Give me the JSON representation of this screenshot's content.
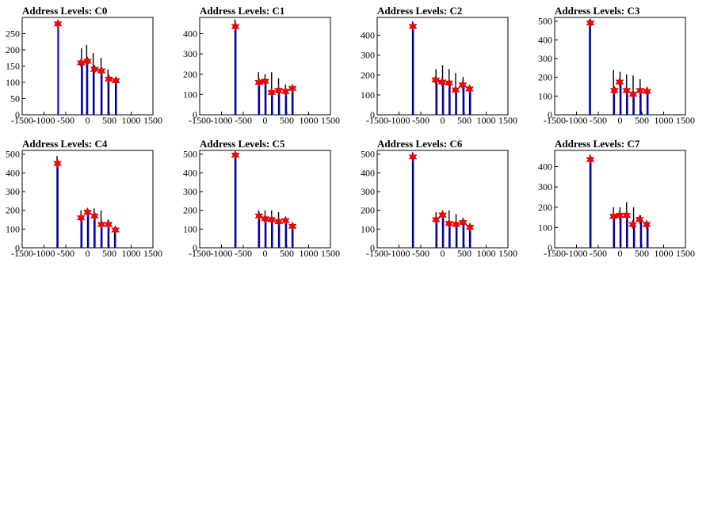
{
  "chart_data": [
    {
      "type": "bar",
      "title": "Address Levels: C0",
      "xlim": [
        -1500,
        1500
      ],
      "ylim": [
        0,
        300
      ],
      "xticks": [
        -1500,
        -1000,
        -500,
        0,
        500,
        1000,
        1500
      ],
      "yticks": [
        0,
        50,
        100,
        150,
        200,
        250
      ],
      "black_bars": [
        [
          -680,
          290
        ],
        [
          -140,
          205
        ],
        [
          -20,
          215
        ],
        [
          130,
          190
        ],
        [
          310,
          175
        ],
        [
          470,
          140
        ],
        [
          640,
          110
        ]
      ],
      "blue_bars": [
        [
          -670,
          270
        ],
        [
          -120,
          160
        ],
        [
          0,
          170
        ],
        [
          150,
          140
        ],
        [
          330,
          135
        ],
        [
          490,
          110
        ],
        [
          660,
          105
        ]
      ],
      "peaks": [
        [
          -680,
          280
        ],
        [
          -150,
          160
        ],
        [
          0,
          165
        ],
        [
          160,
          140
        ],
        [
          320,
          135
        ],
        [
          490,
          110
        ],
        [
          650,
          105
        ]
      ]
    },
    {
      "type": "bar",
      "title": "Address Levels: C1",
      "xlim": [
        -1500,
        1500
      ],
      "ylim": [
        0,
        480
      ],
      "xticks": [
        -1500,
        -1000,
        -500,
        0,
        500,
        1000,
        1500
      ],
      "yticks": [
        0,
        100,
        200,
        300,
        400
      ],
      "black_bars": [
        [
          -690,
          470
        ],
        [
          -150,
          210
        ],
        [
          0,
          200
        ],
        [
          150,
          210
        ],
        [
          310,
          180
        ],
        [
          470,
          150
        ],
        [
          620,
          140
        ]
      ],
      "blue_bars": [
        [
          -670,
          440
        ],
        [
          -130,
          165
        ],
        [
          20,
          165
        ],
        [
          170,
          115
        ],
        [
          330,
          120
        ],
        [
          490,
          115
        ],
        [
          640,
          135
        ]
      ],
      "peaks": [
        [
          -680,
          435
        ],
        [
          -140,
          160
        ],
        [
          0,
          165
        ],
        [
          150,
          110
        ],
        [
          310,
          120
        ],
        [
          470,
          115
        ],
        [
          630,
          130
        ]
      ]
    },
    {
      "type": "bar",
      "title": "Address Levels: C2",
      "xlim": [
        -1500,
        1500
      ],
      "ylim": [
        0,
        490
      ],
      "xticks": [
        -1500,
        -1000,
        -500,
        0,
        500,
        1000,
        1500
      ],
      "yticks": [
        0,
        100,
        200,
        300,
        400
      ],
      "black_bars": [
        [
          -690,
          470
        ],
        [
          -150,
          230
        ],
        [
          0,
          250
        ],
        [
          150,
          230
        ],
        [
          300,
          210
        ],
        [
          470,
          190
        ],
        [
          620,
          150
        ]
      ],
      "blue_bars": [
        [
          -670,
          445
        ],
        [
          -130,
          180
        ],
        [
          20,
          170
        ],
        [
          170,
          160
        ],
        [
          320,
          130
        ],
        [
          490,
          150
        ],
        [
          640,
          130
        ]
      ],
      "peaks": [
        [
          -680,
          445
        ],
        [
          -160,
          175
        ],
        [
          -10,
          165
        ],
        [
          150,
          160
        ],
        [
          300,
          125
        ],
        [
          460,
          150
        ],
        [
          620,
          130
        ]
      ]
    },
    {
      "type": "bar",
      "title": "Address Levels: C3",
      "xlim": [
        -1500,
        1500
      ],
      "ylim": [
        0,
        520
      ],
      "xticks": [
        -1500,
        -1000,
        -500,
        0,
        500,
        1000,
        1500
      ],
      "yticks": [
        0,
        100,
        200,
        300,
        400,
        500
      ],
      "black_bars": [
        [
          -700,
          510
        ],
        [
          -150,
          240
        ],
        [
          0,
          230
        ],
        [
          150,
          215
        ],
        [
          300,
          210
        ],
        [
          460,
          190
        ],
        [
          620,
          150
        ]
      ],
      "blue_bars": [
        [
          -680,
          490
        ],
        [
          -130,
          135
        ],
        [
          20,
          180
        ],
        [
          170,
          135
        ],
        [
          320,
          110
        ],
        [
          480,
          135
        ],
        [
          640,
          125
        ]
      ],
      "peaks": [
        [
          -680,
          490
        ],
        [
          -130,
          130
        ],
        [
          -10,
          175
        ],
        [
          150,
          130
        ],
        [
          300,
          110
        ],
        [
          460,
          130
        ],
        [
          620,
          125
        ]
      ]
    },
    {
      "type": "bar",
      "title": "Address Levels: C4",
      "xlim": [
        -1500,
        1500
      ],
      "ylim": [
        0,
        520
      ],
      "xticks": [
        -1500,
        -1000,
        -500,
        0,
        500,
        1000,
        1500
      ],
      "yticks": [
        0,
        100,
        200,
        300,
        400,
        500
      ],
      "black_bars": [
        [
          -700,
          490
        ],
        [
          -150,
          200
        ],
        [
          0,
          210
        ],
        [
          150,
          210
        ],
        [
          310,
          200
        ],
        [
          470,
          150
        ],
        [
          620,
          110
        ]
      ],
      "blue_bars": [
        [
          -680,
          450
        ],
        [
          -130,
          160
        ],
        [
          20,
          190
        ],
        [
          170,
          170
        ],
        [
          330,
          130
        ],
        [
          490,
          125
        ],
        [
          640,
          100
        ]
      ],
      "peaks": [
        [
          -690,
          450
        ],
        [
          -150,
          160
        ],
        [
          0,
          190
        ],
        [
          160,
          170
        ],
        [
          320,
          125
        ],
        [
          480,
          125
        ],
        [
          640,
          95
        ]
      ]
    },
    {
      "type": "bar",
      "title": "Address Levels: C5",
      "xlim": [
        -1500,
        1500
      ],
      "ylim": [
        0,
        520
      ],
      "xticks": [
        -1500,
        -1000,
        -500,
        0,
        500,
        1000,
        1500
      ],
      "yticks": [
        0,
        100,
        200,
        300,
        400,
        500
      ],
      "black_bars": [
        [
          -690,
          510
        ],
        [
          -150,
          200
        ],
        [
          0,
          200
        ],
        [
          150,
          200
        ],
        [
          310,
          190
        ],
        [
          470,
          160
        ],
        [
          620,
          130
        ]
      ],
      "blue_bars": [
        [
          -670,
          495
        ],
        [
          -130,
          170
        ],
        [
          20,
          160
        ],
        [
          170,
          155
        ],
        [
          330,
          145
        ],
        [
          490,
          145
        ],
        [
          640,
          115
        ]
      ],
      "peaks": [
        [
          -680,
          495
        ],
        [
          -140,
          170
        ],
        [
          0,
          155
        ],
        [
          150,
          150
        ],
        [
          310,
          140
        ],
        [
          470,
          145
        ],
        [
          630,
          115
        ]
      ]
    },
    {
      "type": "bar",
      "title": "Address Levels: C6",
      "xlim": [
        -1500,
        1500
      ],
      "ylim": [
        0,
        520
      ],
      "xticks": [
        -1500,
        -1000,
        -500,
        0,
        500,
        1000,
        1500
      ],
      "yticks": [
        0,
        100,
        200,
        300,
        400,
        500
      ],
      "black_bars": [
        [
          -690,
          510
        ],
        [
          -150,
          190
        ],
        [
          0,
          200
        ],
        [
          150,
          200
        ],
        [
          310,
          180
        ],
        [
          470,
          160
        ],
        [
          620,
          120
        ]
      ],
      "blue_bars": [
        [
          -670,
          490
        ],
        [
          -130,
          155
        ],
        [
          20,
          175
        ],
        [
          170,
          130
        ],
        [
          330,
          130
        ],
        [
          490,
          140
        ],
        [
          640,
          110
        ]
      ],
      "peaks": [
        [
          -680,
          485
        ],
        [
          -150,
          150
        ],
        [
          0,
          175
        ],
        [
          150,
          130
        ],
        [
          310,
          125
        ],
        [
          470,
          135
        ],
        [
          630,
          110
        ]
      ]
    },
    {
      "type": "bar",
      "title": "Address Levels: C7",
      "xlim": [
        -1500,
        1500
      ],
      "ylim": [
        0,
        480
      ],
      "xticks": [
        -1500,
        -1000,
        -500,
        0,
        500,
        1000,
        1500
      ],
      "yticks": [
        0,
        100,
        200,
        300,
        400
      ],
      "black_bars": [
        [
          -690,
          460
        ],
        [
          -150,
          200
        ],
        [
          0,
          200
        ],
        [
          150,
          225
        ],
        [
          310,
          200
        ],
        [
          470,
          160
        ],
        [
          620,
          130
        ]
      ],
      "blue_bars": [
        [
          -670,
          440
        ],
        [
          -130,
          155
        ],
        [
          20,
          160
        ],
        [
          170,
          165
        ],
        [
          330,
          115
        ],
        [
          490,
          140
        ],
        [
          640,
          120
        ]
      ],
      "peaks": [
        [
          -680,
          435
        ],
        [
          -150,
          155
        ],
        [
          -10,
          160
        ],
        [
          150,
          160
        ],
        [
          290,
          115
        ],
        [
          450,
          140
        ],
        [
          610,
          115
        ]
      ]
    }
  ]
}
